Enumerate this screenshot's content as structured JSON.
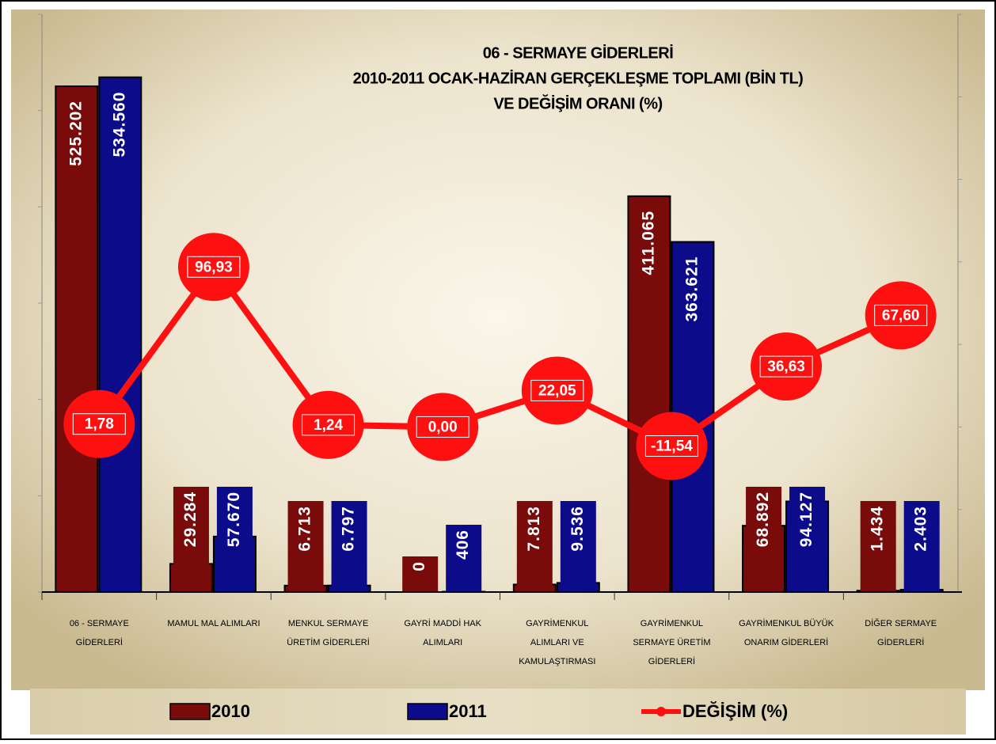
{
  "chart_data": {
    "type": "bar_line",
    "title": [
      "06 - SERMAYE GİDERLERİ",
      "2010-2011 OCAK-HAZİRAN GERÇEKLEŞME TOPLAMI (BİN TL)",
      "VE DEĞİŞİM ORANI (%)"
    ],
    "categories": [
      "06 - SERMAYE\nGİDERLERİ",
      "MAMUL MAL ALIMLARI",
      "MENKUL SERMAYE\nÜRETİM GİDERLERİ",
      "GAYRİ MADDİ HAK\nALIMLARI",
      "GAYRİMENKUL\nALIMLARI VE\nKAMULAŞTIRMASI",
      "GAYRİMENKUL\nSERMAYE ÜRETİM\nGİDERLERİ",
      "GAYRİMENKUL BÜYÜK\nONARIM GİDERLERİ",
      "DİĞER SERMAYE\nGİDERLERİ"
    ],
    "series": [
      {
        "name": "2010",
        "type": "bar",
        "color": "#7a0b0b",
        "values": [
          525202,
          29284,
          6713,
          0,
          7813,
          411065,
          68892,
          1434
        ],
        "value_labels": [
          "525.202",
          "29.284",
          "6.713",
          "0",
          "7.813",
          "411.065",
          "68.892",
          "1.434"
        ]
      },
      {
        "name": "2011",
        "type": "bar",
        "color": "#0c0c8a",
        "values": [
          534560,
          57670,
          6797,
          406,
          9536,
          363621,
          94127,
          2403
        ],
        "value_labels": [
          "534.560",
          "57.670",
          "6.797",
          "406",
          "9.536",
          "363.621",
          "94.127",
          "2.403"
        ]
      },
      {
        "name": "DEĞİŞİM (%)",
        "type": "line",
        "axis": "y2",
        "color": "#ff1010",
        "values": [
          1.78,
          96.93,
          1.24,
          0.0,
          22.05,
          -11.54,
          36.63,
          67.6
        ],
        "value_labels": [
          "1,78",
          "96,93",
          "1,24",
          "0,00",
          "22,05",
          "-11,54",
          "36,63",
          "67,60"
        ]
      }
    ],
    "ylim": [
      0,
      600000
    ],
    "yticks": [
      0,
      100000,
      200000,
      300000,
      400000,
      500000,
      600000
    ],
    "y2lim": [
      -100,
      250
    ],
    "y2ticks": [
      -100,
      -50,
      0,
      50,
      100,
      150,
      200,
      250
    ]
  }
}
